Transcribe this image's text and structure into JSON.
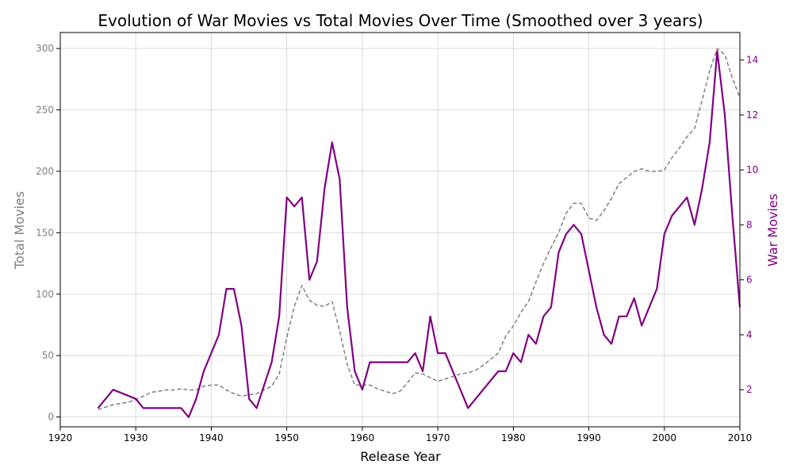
{
  "chart_data": {
    "type": "line",
    "title": "Evolution of War Movies vs Total Movies Over Time (Smoothed over 3 years)",
    "xlabel": "Release Year",
    "ylabel_left": "Total Movies",
    "ylabel_right": "War Movies",
    "xlim": [
      1920,
      2010
    ],
    "ylim_left": [
      -8,
      313
    ],
    "ylim_right": [
      0.65,
      15.0
    ],
    "x_ticks": [
      1920,
      1930,
      1940,
      1950,
      1960,
      1970,
      1980,
      1990,
      2000,
      2010
    ],
    "y_left_ticks": [
      0,
      50,
      100,
      150,
      200,
      250,
      300
    ],
    "y_right_ticks": [
      2,
      4,
      6,
      8,
      10,
      12,
      14
    ],
    "grid": true,
    "colors": {
      "total": "#808080",
      "war": "#800080",
      "left_axis_text": "#808080",
      "right_axis_text": "#800080",
      "grid": "#d3d3d3",
      "axis": "#000000"
    },
    "series": [
      {
        "key": "total",
        "axis": "left",
        "style": "dashed",
        "x": [
          1925,
          1926,
          1927,
          1928,
          1929,
          1930,
          1931,
          1932,
          1933,
          1934,
          1935,
          1936,
          1937,
          1938,
          1939,
          1940,
          1941,
          1942,
          1943,
          1944,
          1945,
          1946,
          1947,
          1948,
          1949,
          1950,
          1951,
          1952,
          1953,
          1954,
          1955,
          1956,
          1957,
          1958,
          1959,
          1960,
          1961,
          1962,
          1963,
          1964,
          1965,
          1966,
          1967,
          1968,
          1969,
          1970,
          1971,
          1972,
          1973,
          1974,
          1975,
          1976,
          1977,
          1978,
          1979,
          1980,
          1981,
          1982,
          1983,
          1984,
          1985,
          1986,
          1987,
          1988,
          1989,
          1990,
          1991,
          1992,
          1993,
          1994,
          1995,
          1996,
          1997,
          1998,
          1999,
          2000,
          2001,
          2002,
          2003,
          2004,
          2005,
          2006,
          2007,
          2008,
          2009,
          2010
        ],
        "values": [
          6,
          8,
          10,
          11,
          12,
          14,
          17,
          20,
          21,
          22,
          22,
          23,
          22,
          22,
          25,
          26,
          26,
          22,
          19,
          17,
          18,
          19,
          22,
          25,
          35,
          65,
          90,
          107,
          95,
          91,
          90,
          94,
          70,
          43,
          26,
          26,
          26,
          23,
          21,
          19,
          21,
          28,
          36,
          35,
          32,
          29,
          31,
          33,
          35,
          36,
          38,
          42,
          47,
          52,
          66,
          74,
          85,
          94,
          110,
          125,
          138,
          150,
          166,
          174,
          174,
          162,
          160,
          168,
          178,
          190,
          195,
          200,
          202,
          200,
          200,
          201,
          211,
          219,
          228,
          235,
          258,
          282,
          300,
          295,
          276,
          260
        ]
      },
      {
        "key": "war",
        "axis": "right",
        "style": "solid",
        "x": [
          1925,
          1927,
          1930,
          1931,
          1936,
          1937,
          1938,
          1939,
          1941,
          1942,
          1943,
          1944,
          1945,
          1946,
          1948,
          1949,
          1950,
          1951,
          1952,
          1953,
          1954,
          1955,
          1956,
          1957,
          1958,
          1959,
          1960,
          1961,
          1966,
          1967,
          1968,
          1969,
          1970,
          1971,
          1974,
          1978,
          1979,
          1980,
          1981,
          1982,
          1983,
          1984,
          1985,
          1986,
          1987,
          1988,
          1989,
          1990,
          1991,
          1992,
          1993,
          1994,
          1995,
          1996,
          1997,
          1999,
          2000,
          2001,
          2003,
          2004,
          2005,
          2006,
          2007,
          2008,
          2009,
          2010
        ],
        "values": [
          1.33,
          2.0,
          1.67,
          1.33,
          1.33,
          1.0,
          1.67,
          2.67,
          4.0,
          5.67,
          5.67,
          4.33,
          1.67,
          1.33,
          3.0,
          4.67,
          9.0,
          8.67,
          9.0,
          6.0,
          6.67,
          9.33,
          11.0,
          9.67,
          5.0,
          2.67,
          2.0,
          3.0,
          3.0,
          3.33,
          2.67,
          4.67,
          3.33,
          3.33,
          1.33,
          2.67,
          2.67,
          3.33,
          3.0,
          4.0,
          3.67,
          4.67,
          5.0,
          7.0,
          7.67,
          8.0,
          7.67,
          6.33,
          5.0,
          4.0,
          3.67,
          4.67,
          4.67,
          5.33,
          4.33,
          5.67,
          7.67,
          8.33,
          9.0,
          8.0,
          9.33,
          11.0,
          14.33,
          12.0,
          8.33,
          5.0
        ]
      }
    ]
  }
}
